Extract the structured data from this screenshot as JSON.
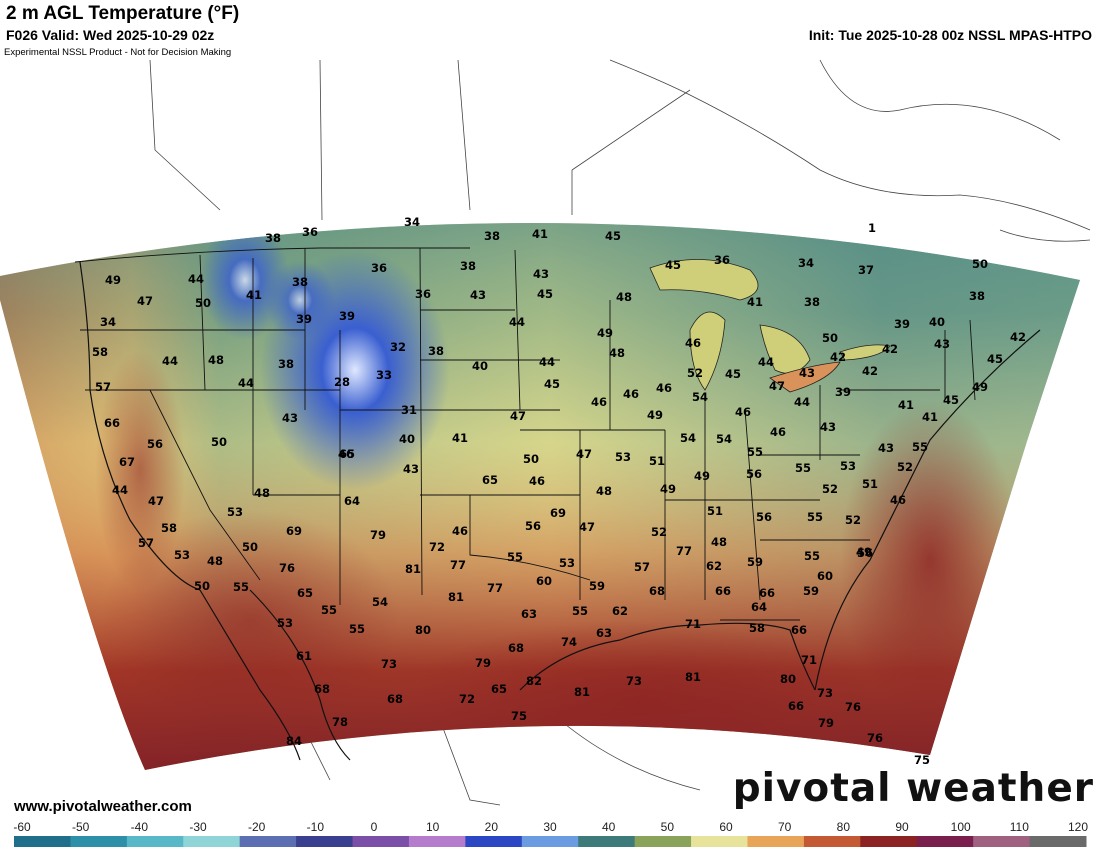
{
  "header": {
    "title": "2 m AGL Temperature (°F)",
    "valid": "F026 Valid: Wed 2025-10-29 02z",
    "init": "Init: Tue 2025-10-28 00z NSSL MPAS-HTPO",
    "disclaimer": "Experimental NSSL Product - Not for Decision Making"
  },
  "footer": {
    "website": "www.pivotalweather.com",
    "brand": "pivotal weather"
  },
  "colorbar": {
    "ticks": [
      "-60",
      "-50",
      "-40",
      "-30",
      "-20",
      "-10",
      "0",
      "10",
      "20",
      "30",
      "40",
      "50",
      "60",
      "70",
      "80",
      "90",
      "100",
      "110",
      "120"
    ],
    "colors": [
      "#1f6f8b",
      "#2e8fa8",
      "#58b8c8",
      "#8fd4d6",
      "#5c6fb2",
      "#3b3f8f",
      "#7b4fa8",
      "#b57bcd",
      "#2b47c4",
      "#6b9be0",
      "#3d7a7a",
      "#8aa35a",
      "#e8e39a",
      "#e8a55a",
      "#c45a33",
      "#8c2222",
      "#7a1f4d",
      "#a06080",
      "#6a6a6a"
    ]
  },
  "map_colors": {
    "cold_blue": "#3a5fd0",
    "teal": "#4f8f86",
    "yellow": "#e6e094",
    "orange": "#d9935a",
    "red": "#9e3024",
    "maroon": "#7a1c28"
  },
  "temperature_labels": [
    {
      "t": "34"
    },
    {
      "t": "38"
    },
    {
      "t": "36"
    },
    {
      "t": "38"
    },
    {
      "t": "41"
    },
    {
      "t": "45"
    },
    {
      "t": "1"
    },
    {
      "t": "49"
    },
    {
      "t": "44"
    },
    {
      "t": "47"
    },
    {
      "t": "50"
    },
    {
      "t": "41"
    },
    {
      "t": "38"
    },
    {
      "t": "36"
    },
    {
      "t": "36"
    },
    {
      "t": "38"
    },
    {
      "t": "43"
    },
    {
      "t": "45"
    },
    {
      "t": "45"
    },
    {
      "t": "36"
    },
    {
      "t": "34"
    },
    {
      "t": "37"
    },
    {
      "t": "50"
    },
    {
      "t": "34"
    },
    {
      "t": "39"
    },
    {
      "t": "39"
    },
    {
      "t": "43"
    },
    {
      "t": "48"
    },
    {
      "t": "41"
    },
    {
      "t": "38"
    },
    {
      "t": "38"
    },
    {
      "t": "39"
    },
    {
      "t": "40"
    },
    {
      "t": "58"
    },
    {
      "t": "44"
    },
    {
      "t": "48"
    },
    {
      "t": "32"
    },
    {
      "t": "38"
    },
    {
      "t": "44"
    },
    {
      "t": "49"
    },
    {
      "t": "48"
    },
    {
      "t": "46"
    },
    {
      "t": "50"
    },
    {
      "t": "42"
    },
    {
      "t": "43"
    },
    {
      "t": "42"
    },
    {
      "t": "42"
    },
    {
      "t": "45"
    },
    {
      "t": "57"
    },
    {
      "t": "44"
    },
    {
      "t": "38"
    },
    {
      "t": "28"
    },
    {
      "t": "33"
    },
    {
      "t": "40"
    },
    {
      "t": "44"
    },
    {
      "t": "45"
    },
    {
      "t": "46"
    },
    {
      "t": "52"
    },
    {
      "t": "45"
    },
    {
      "t": "44"
    },
    {
      "t": "47"
    },
    {
      "t": "43"
    },
    {
      "t": "39"
    },
    {
      "t": "42"
    },
    {
      "t": "49"
    },
    {
      "t": "66"
    },
    {
      "t": "43"
    },
    {
      "t": "31"
    },
    {
      "t": "47"
    },
    {
      "t": "46"
    },
    {
      "t": "46"
    },
    {
      "t": "54"
    },
    {
      "t": "54"
    },
    {
      "t": "49"
    },
    {
      "t": "46"
    },
    {
      "t": "44"
    },
    {
      "t": "41"
    },
    {
      "t": "41"
    },
    {
      "t": "45"
    },
    {
      "t": "43"
    },
    {
      "t": "56"
    },
    {
      "t": "50"
    },
    {
      "t": "40"
    },
    {
      "t": "41"
    },
    {
      "t": "53"
    },
    {
      "t": "54"
    },
    {
      "t": "46"
    },
    {
      "t": "43"
    },
    {
      "t": "55"
    },
    {
      "t": "67"
    },
    {
      "t": "46"
    },
    {
      "t": "43"
    },
    {
      "t": "50"
    },
    {
      "t": "47"
    },
    {
      "t": "51"
    },
    {
      "t": "55"
    },
    {
      "t": "53"
    },
    {
      "t": "52"
    },
    {
      "t": "44"
    },
    {
      "t": "65"
    },
    {
      "t": "65"
    },
    {
      "t": "46"
    },
    {
      "t": "48"
    },
    {
      "t": "49"
    },
    {
      "t": "56"
    },
    {
      "t": "55"
    },
    {
      "t": "51"
    },
    {
      "t": "48"
    },
    {
      "t": "53"
    },
    {
      "t": "64"
    },
    {
      "t": "69"
    },
    {
      "t": "49"
    },
    {
      "t": "51"
    },
    {
      "t": "56"
    },
    {
      "t": "52"
    },
    {
      "t": "46"
    },
    {
      "t": "47"
    },
    {
      "t": "58"
    },
    {
      "t": "69"
    },
    {
      "t": "79"
    },
    {
      "t": "46"
    },
    {
      "t": "56"
    },
    {
      "t": "47"
    },
    {
      "t": "52"
    },
    {
      "t": "52"
    },
    {
      "t": "57"
    },
    {
      "t": "50"
    },
    {
      "t": "72"
    },
    {
      "t": "77"
    },
    {
      "t": "48"
    },
    {
      "t": "55"
    },
    {
      "t": "56"
    },
    {
      "t": "53"
    },
    {
      "t": "48"
    },
    {
      "t": "76"
    },
    {
      "t": "81"
    },
    {
      "t": "77"
    },
    {
      "t": "55"
    },
    {
      "t": "53"
    },
    {
      "t": "59"
    },
    {
      "t": "55"
    },
    {
      "t": "49"
    },
    {
      "t": "50"
    },
    {
      "t": "55"
    },
    {
      "t": "65"
    },
    {
      "t": "81"
    },
    {
      "t": "77"
    },
    {
      "t": "60"
    },
    {
      "t": "59"
    },
    {
      "t": "57"
    },
    {
      "t": "62"
    },
    {
      "t": "60"
    },
    {
      "t": "55"
    },
    {
      "t": "54"
    },
    {
      "t": "68"
    },
    {
      "t": "66"
    },
    {
      "t": "66"
    },
    {
      "t": "59"
    },
    {
      "t": "53"
    },
    {
      "t": "55"
    },
    {
      "t": "80"
    },
    {
      "t": "63"
    },
    {
      "t": "55"
    },
    {
      "t": "62"
    },
    {
      "t": "64"
    },
    {
      "t": "71"
    },
    {
      "t": "58"
    },
    {
      "t": "66"
    },
    {
      "t": "63"
    },
    {
      "t": "61"
    },
    {
      "t": "73"
    },
    {
      "t": "79"
    },
    {
      "t": "68"
    },
    {
      "t": "74"
    },
    {
      "t": "71"
    },
    {
      "t": "68"
    },
    {
      "t": "65"
    },
    {
      "t": "82"
    },
    {
      "t": "81"
    },
    {
      "t": "73"
    },
    {
      "t": "81"
    },
    {
      "t": "80"
    },
    {
      "t": "73"
    },
    {
      "t": "68"
    },
    {
      "t": "72"
    },
    {
      "t": "66"
    },
    {
      "t": "76"
    },
    {
      "t": "78"
    },
    {
      "t": "75"
    },
    {
      "t": "79"
    },
    {
      "t": "84"
    },
    {
      "t": "76"
    },
    {
      "t": "75"
    },
    {
      "t": "75"
    },
    {
      "t": "77"
    }
  ]
}
